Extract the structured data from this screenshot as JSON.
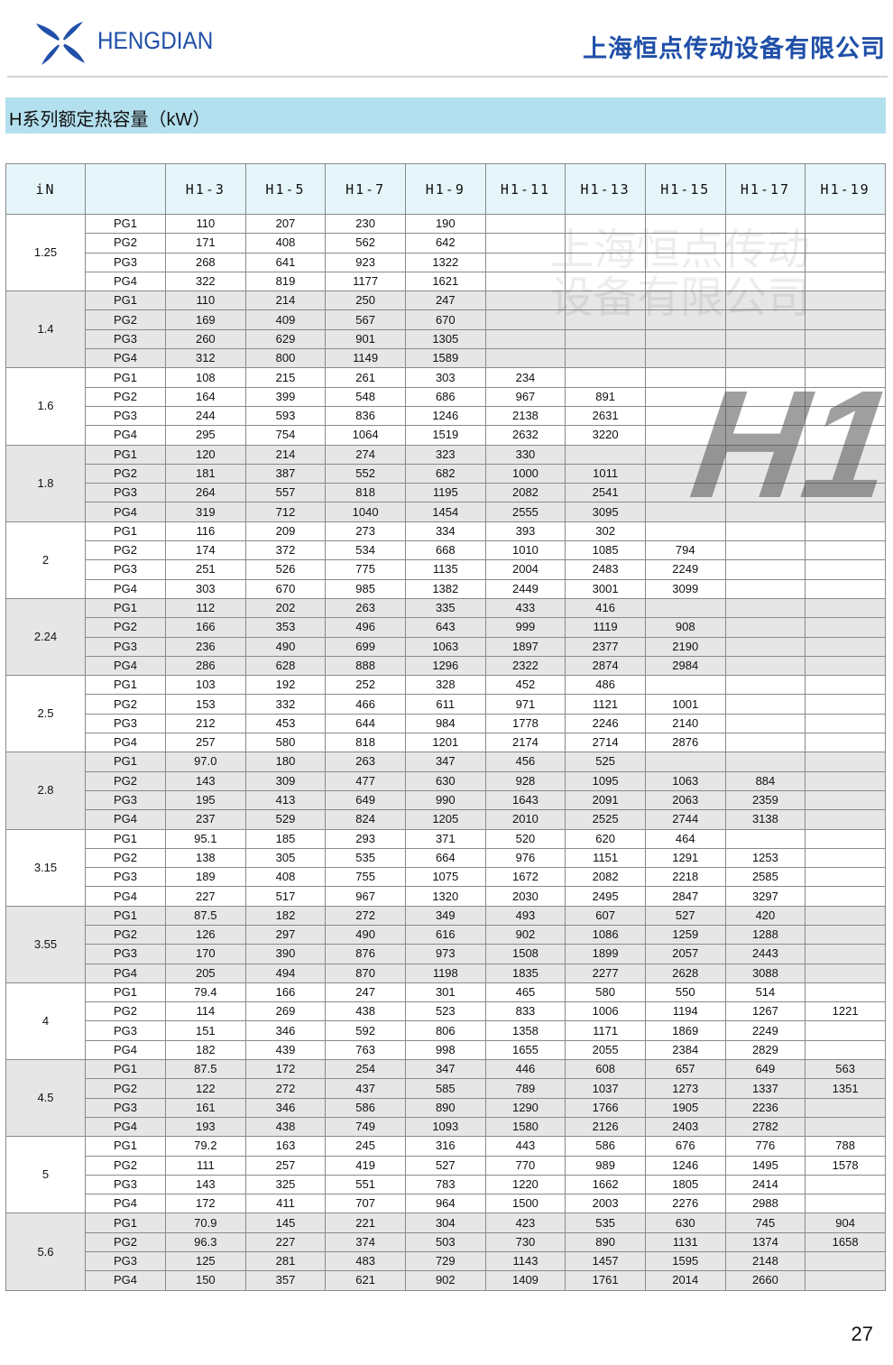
{
  "header": {
    "brand": "HENGDIAN",
    "company": "上海恒点传动设备有限公司",
    "logo_icon": "pinwheel-logo-icon",
    "brand_color": "#1f4fa8"
  },
  "section_title": "H系列额定热容量（kW）",
  "watermarks": {
    "company": "上海恒点传动设备有限公司",
    "model": "H1"
  },
  "table": {
    "headers": [
      "iN",
      "",
      "H1-3",
      "H1-5",
      "H1-7",
      "H1-9",
      "H1-11",
      "H1-13",
      "H1-15",
      "H1-17",
      "H1-19"
    ],
    "pg_labels": [
      "PG1",
      "PG2",
      "PG3",
      "PG4"
    ],
    "groups": [
      {
        "iN": "1.25",
        "rows": [
          [
            "110",
            "207",
            "230",
            "190",
            "",
            "",
            "",
            "",
            ""
          ],
          [
            "171",
            "408",
            "562",
            "642",
            "",
            "",
            "",
            "",
            ""
          ],
          [
            "268",
            "641",
            "923",
            "1322",
            "",
            "",
            "",
            "",
            ""
          ],
          [
            "322",
            "819",
            "1177",
            "1621",
            "",
            "",
            "",
            "",
            ""
          ]
        ]
      },
      {
        "iN": "1.4",
        "rows": [
          [
            "110",
            "214",
            "250",
            "247",
            "",
            "",
            "",
            "",
            ""
          ],
          [
            "169",
            "409",
            "567",
            "670",
            "",
            "",
            "",
            "",
            ""
          ],
          [
            "260",
            "629",
            "901",
            "1305",
            "",
            "",
            "",
            "",
            ""
          ],
          [
            "312",
            "800",
            "1149",
            "1589",
            "",
            "",
            "",
            "",
            ""
          ]
        ]
      },
      {
        "iN": "1.6",
        "rows": [
          [
            "108",
            "215",
            "261",
            "303",
            "234",
            "",
            "",
            "",
            ""
          ],
          [
            "164",
            "399",
            "548",
            "686",
            "967",
            "891",
            "",
            "",
            ""
          ],
          [
            "244",
            "593",
            "836",
            "1246",
            "2138",
            "2631",
            "",
            "",
            ""
          ],
          [
            "295",
            "754",
            "1064",
            "1519",
            "2632",
            "3220",
            "",
            "",
            ""
          ]
        ]
      },
      {
        "iN": "1.8",
        "rows": [
          [
            "120",
            "214",
            "274",
            "323",
            "330",
            "",
            "",
            "",
            ""
          ],
          [
            "181",
            "387",
            "552",
            "682",
            "1000",
            "1011",
            "",
            "",
            ""
          ],
          [
            "264",
            "557",
            "818",
            "1195",
            "2082",
            "2541",
            "",
            "",
            ""
          ],
          [
            "319",
            "712",
            "1040",
            "1454",
            "2555",
            "3095",
            "",
            "",
            ""
          ]
        ]
      },
      {
        "iN": "2",
        "rows": [
          [
            "116",
            "209",
            "273",
            "334",
            "393",
            "302",
            "",
            "",
            ""
          ],
          [
            "174",
            "372",
            "534",
            "668",
            "1010",
            "1085",
            "794",
            "",
            ""
          ],
          [
            "251",
            "526",
            "775",
            "1135",
            "2004",
            "2483",
            "2249",
            "",
            ""
          ],
          [
            "303",
            "670",
            "985",
            "1382",
            "2449",
            "3001",
            "3099",
            "",
            ""
          ]
        ]
      },
      {
        "iN": "2.24",
        "rows": [
          [
            "112",
            "202",
            "263",
            "335",
            "433",
            "416",
            "",
            "",
            ""
          ],
          [
            "166",
            "353",
            "496",
            "643",
            "999",
            "1119",
            "908",
            "",
            ""
          ],
          [
            "236",
            "490",
            "699",
            "1063",
            "1897",
            "2377",
            "2190",
            "",
            ""
          ],
          [
            "286",
            "628",
            "888",
            "1296",
            "2322",
            "2874",
            "2984",
            "",
            ""
          ]
        ]
      },
      {
        "iN": "2.5",
        "rows": [
          [
            "103",
            "192",
            "252",
            "328",
            "452",
            "486",
            "",
            "",
            ""
          ],
          [
            "153",
            "332",
            "466",
            "611",
            "971",
            "1121",
            "1001",
            "",
            ""
          ],
          [
            "212",
            "453",
            "644",
            "984",
            "1778",
            "2246",
            "2140",
            "",
            ""
          ],
          [
            "257",
            "580",
            "818",
            "1201",
            "2174",
            "2714",
            "2876",
            "",
            ""
          ]
        ]
      },
      {
        "iN": "2.8",
        "rows": [
          [
            "97.0",
            "180",
            "263",
            "347",
            "456",
            "525",
            "",
            "",
            ""
          ],
          [
            "143",
            "309",
            "477",
            "630",
            "928",
            "1095",
            "1063",
            "884",
            ""
          ],
          [
            "195",
            "413",
            "649",
            "990",
            "1643",
            "2091",
            "2063",
            "2359",
            ""
          ],
          [
            "237",
            "529",
            "824",
            "1205",
            "2010",
            "2525",
            "2744",
            "3138",
            ""
          ]
        ]
      },
      {
        "iN": "3.15",
        "rows": [
          [
            "95.1",
            "185",
            "293",
            "371",
            "520",
            "620",
            "464",
            "",
            ""
          ],
          [
            "138",
            "305",
            "535",
            "664",
            "976",
            "1151",
            "1291",
            "1253",
            ""
          ],
          [
            "189",
            "408",
            "755",
            "1075",
            "1672",
            "2082",
            "2218",
            "2585",
            ""
          ],
          [
            "227",
            "517",
            "967",
            "1320",
            "2030",
            "2495",
            "2847",
            "3297",
            ""
          ]
        ]
      },
      {
        "iN": "3.55",
        "rows": [
          [
            "87.5",
            "182",
            "272",
            "349",
            "493",
            "607",
            "527",
            "420",
            ""
          ],
          [
            "126",
            "297",
            "490",
            "616",
            "902",
            "1086",
            "1259",
            "1288",
            ""
          ],
          [
            "170",
            "390",
            "876",
            "973",
            "1508",
            "1899",
            "2057",
            "2443",
            ""
          ],
          [
            "205",
            "494",
            "870",
            "1198",
            "1835",
            "2277",
            "2628",
            "3088",
            ""
          ]
        ]
      },
      {
        "iN": "4",
        "rows": [
          [
            "79.4",
            "166",
            "247",
            "301",
            "465",
            "580",
            "550",
            "514",
            ""
          ],
          [
            "114",
            "269",
            "438",
            "523",
            "833",
            "1006",
            "1194",
            "1267",
            "1221"
          ],
          [
            "151",
            "346",
            "592",
            "806",
            "1358",
            "1171",
            "1869",
            "2249",
            ""
          ],
          [
            "182",
            "439",
            "763",
            "998",
            "1655",
            "2055",
            "2384",
            "2829",
            ""
          ]
        ]
      },
      {
        "iN": "4.5",
        "rows": [
          [
            "87.5",
            "172",
            "254",
            "347",
            "446",
            "608",
            "657",
            "649",
            "563"
          ],
          [
            "122",
            "272",
            "437",
            "585",
            "789",
            "1037",
            "1273",
            "1337",
            "1351"
          ],
          [
            "161",
            "346",
            "586",
            "890",
            "1290",
            "1766",
            "1905",
            "2236",
            ""
          ],
          [
            "193",
            "438",
            "749",
            "1093",
            "1580",
            "2126",
            "2403",
            "2782",
            ""
          ]
        ]
      },
      {
        "iN": "5",
        "rows": [
          [
            "79.2",
            "163",
            "245",
            "316",
            "443",
            "586",
            "676",
            "776",
            "788"
          ],
          [
            "111",
            "257",
            "419",
            "527",
            "770",
            "989",
            "1246",
            "1495",
            "1578"
          ],
          [
            "143",
            "325",
            "551",
            "783",
            "1220",
            "1662",
            "1805",
            "2414",
            ""
          ],
          [
            "172",
            "411",
            "707",
            "964",
            "1500",
            "2003",
            "2276",
            "2988",
            ""
          ]
        ]
      },
      {
        "iN": "5.6",
        "rows": [
          [
            "70.9",
            "145",
            "221",
            "304",
            "423",
            "535",
            "630",
            "745",
            "904"
          ],
          [
            "96.3",
            "227",
            "374",
            "503",
            "730",
            "890",
            "1131",
            "1374",
            "1658"
          ],
          [
            "125",
            "281",
            "483",
            "729",
            "1143",
            "1457",
            "1595",
            "2148",
            ""
          ],
          [
            "150",
            "357",
            "621",
            "902",
            "1409",
            "1761",
            "2014",
            "2660",
            ""
          ]
        ]
      }
    ],
    "shade_color": "#e6e6e6",
    "header_color": "#e6f5fa"
  },
  "page_number": "27"
}
